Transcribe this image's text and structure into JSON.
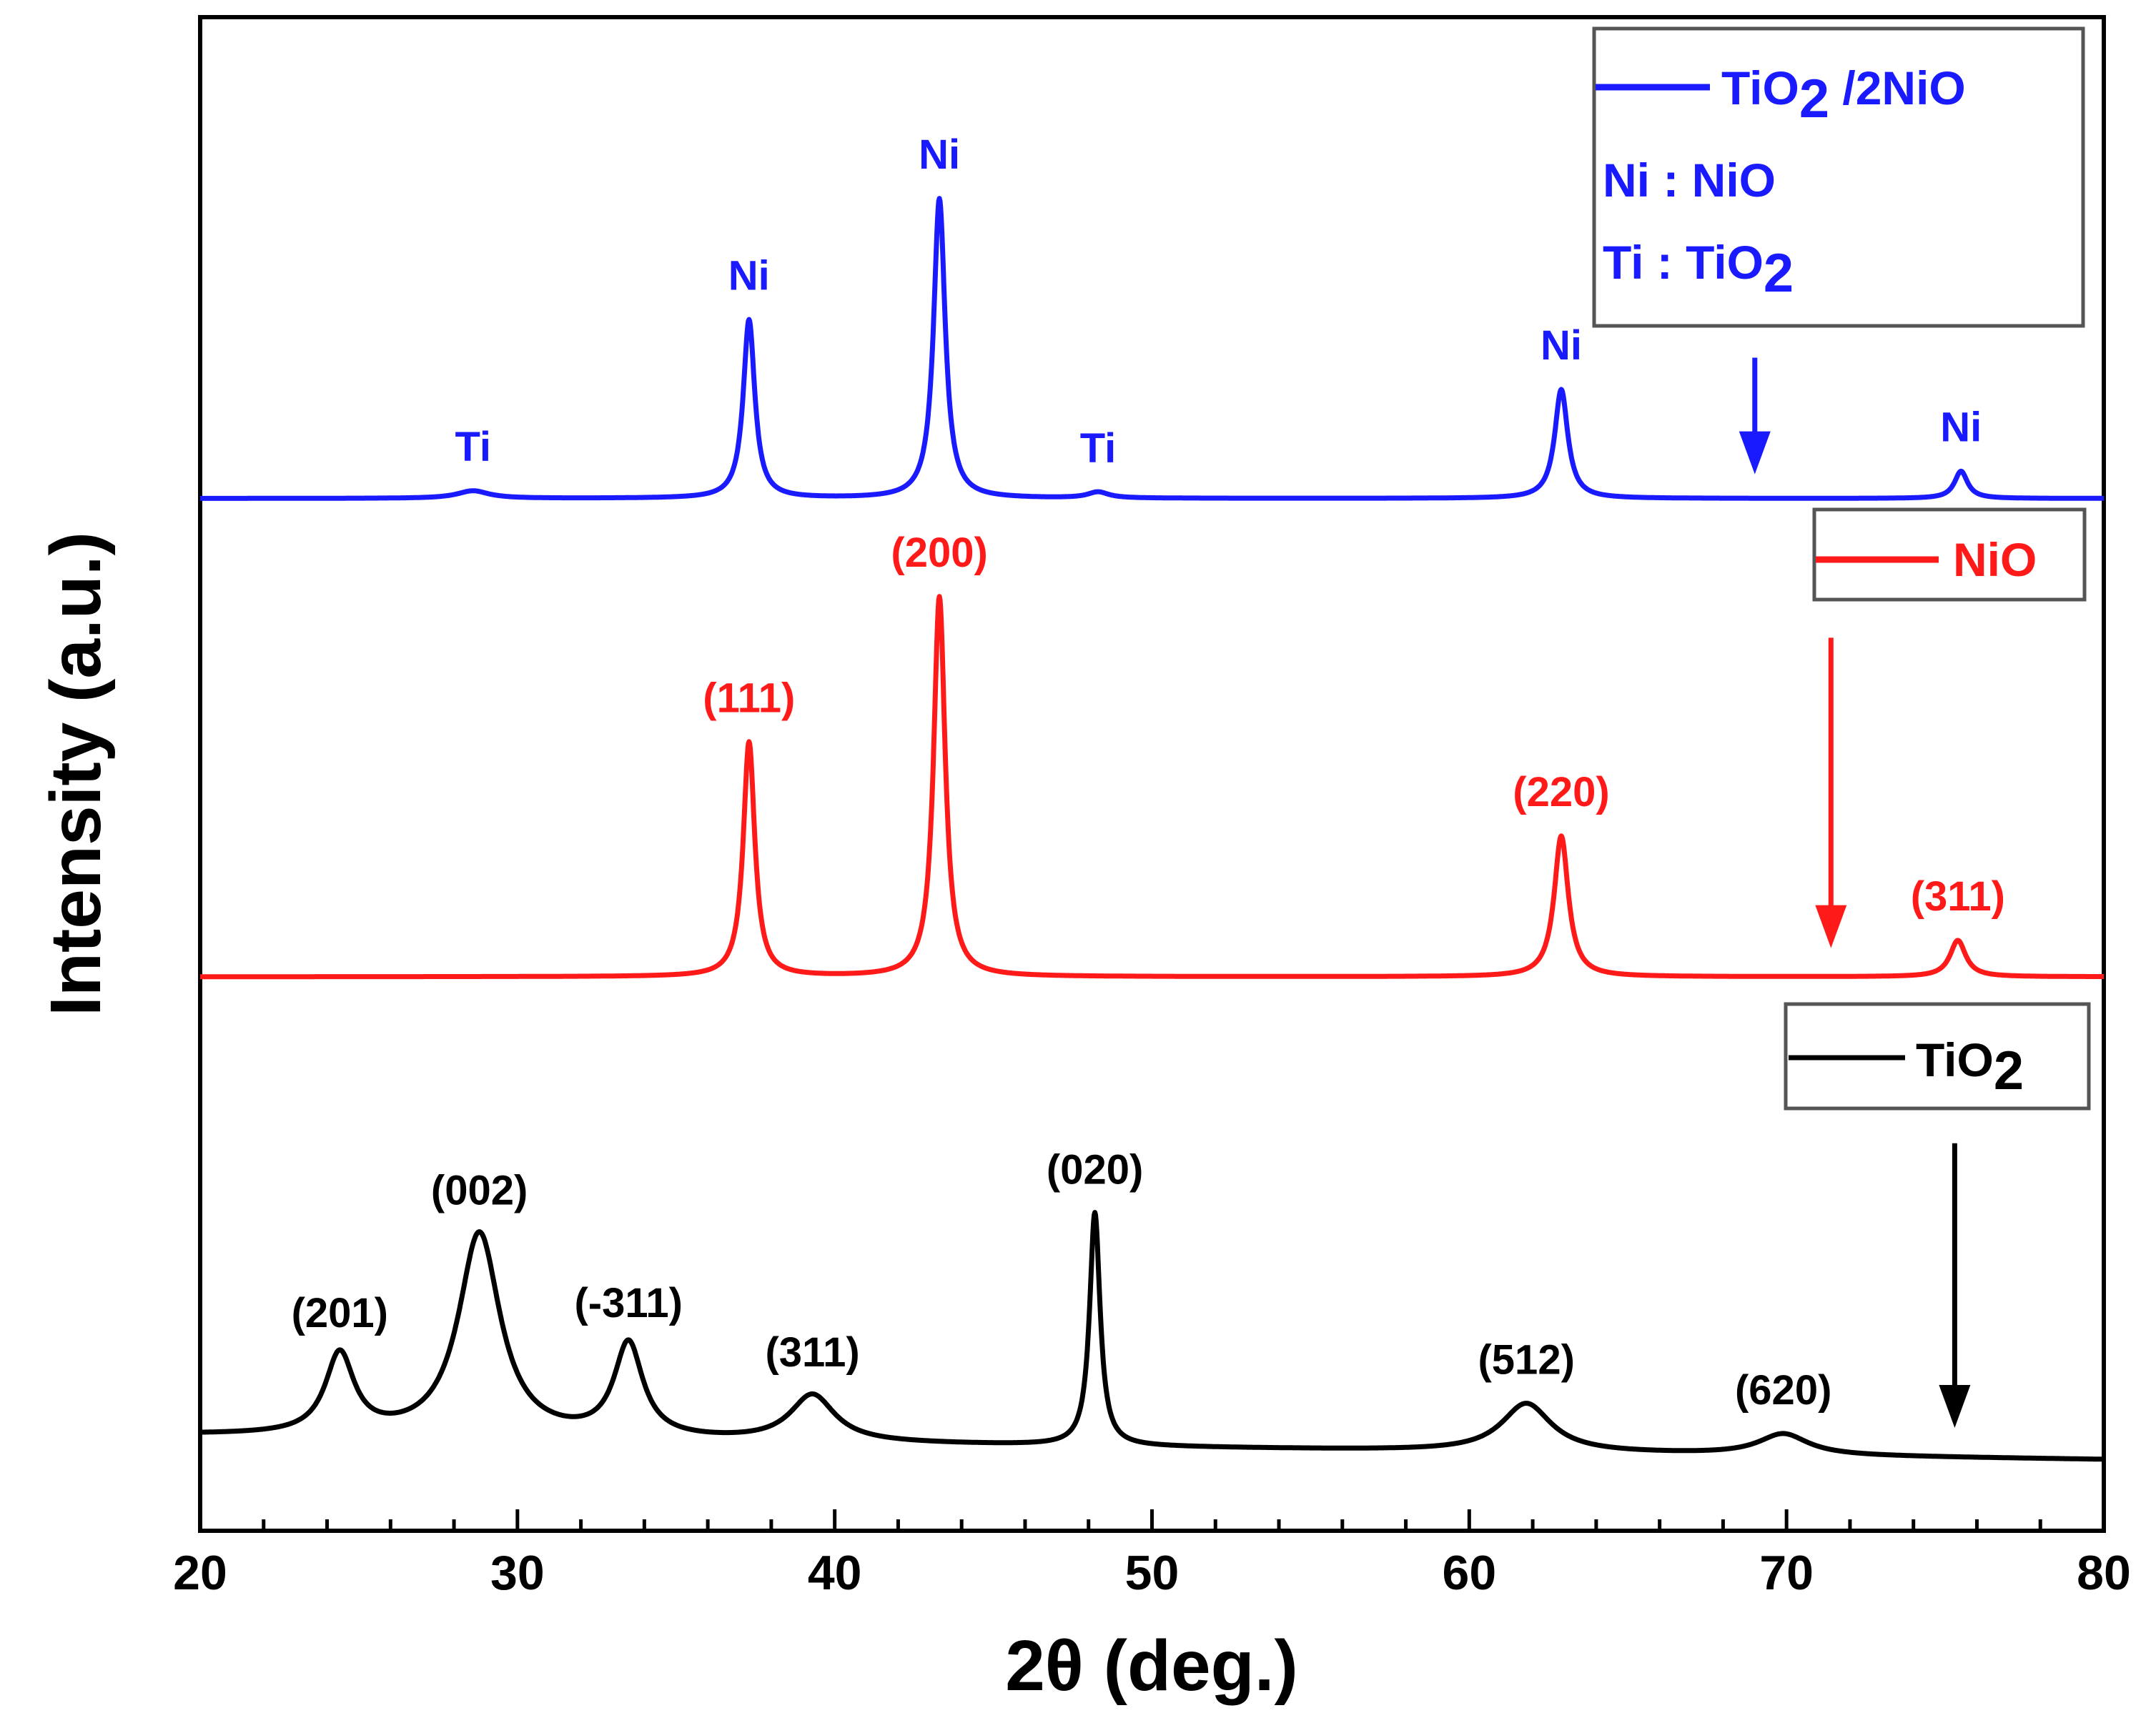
{
  "chart_data": {
    "type": "line",
    "xlabel": "2θ (deg.)",
    "ylabel": "Intensity (a.u.)",
    "xlim": [
      20,
      80
    ],
    "ylim": [
      0,
      1
    ],
    "xticks": [
      20,
      30,
      40,
      50,
      60,
      70,
      80
    ],
    "grid": false,
    "y_tick_labels": false,
    "colors": {
      "tio2_nio": "#1a1aff",
      "nio": "#ff1a1a",
      "tio2": "#000000"
    },
    "series": [
      {
        "id": "tio2_nio",
        "name": "TiO2 /2NiO",
        "color": "#1a1aff",
        "baseline": 0.682,
        "baseline_end": 0.682,
        "peaks": [
          {
            "x": 28.6,
            "height": 0.005,
            "width": 0.6,
            "label": "Ti"
          },
          {
            "x": 37.3,
            "height": 0.118,
            "width": 0.22,
            "label": "Ni"
          },
          {
            "x": 43.3,
            "height": 0.198,
            "width": 0.22,
            "label": "Ni"
          },
          {
            "x": 48.3,
            "height": 0.004,
            "width": 0.4,
            "label": "Ti"
          },
          {
            "x": 62.9,
            "height": 0.072,
            "width": 0.25,
            "label": "Ni"
          },
          {
            "x": 75.5,
            "height": 0.018,
            "width": 0.25,
            "label": "Ni"
          }
        ]
      },
      {
        "id": "nio",
        "name": "NiO",
        "color": "#ff1a1a",
        "baseline": 0.366,
        "baseline_end": 0.366,
        "peaks": [
          {
            "x": 37.3,
            "height": 0.155,
            "width": 0.22,
            "label": "(111)"
          },
          {
            "x": 43.3,
            "height": 0.251,
            "width": 0.22,
            "label": "(200)"
          },
          {
            "x": 62.9,
            "height": 0.093,
            "width": 0.27,
            "label": "(220)"
          },
          {
            "x": 75.4,
            "height": 0.024,
            "width": 0.3,
            "label": "(311)"
          }
        ]
      },
      {
        "id": "tio2",
        "name": "TiO2",
        "color": "#000000",
        "baseline": 0.063,
        "baseline_end": 0.047,
        "peaks": [
          {
            "x": 24.4,
            "height": 0.053,
            "width": 0.55,
            "label": "(201)"
          },
          {
            "x": 28.8,
            "height": 0.135,
            "width": 0.8,
            "label": "(002)"
          },
          {
            "x": 33.5,
            "height": 0.062,
            "width": 0.55,
            "label": "(-311)"
          },
          {
            "x": 39.3,
            "height": 0.031,
            "width": 0.85,
            "label": "(311)"
          },
          {
            "x": 48.2,
            "height": 0.154,
            "width": 0.2,
            "label": "(020)"
          },
          {
            "x": 61.8,
            "height": 0.032,
            "width": 0.95,
            "label": "(512)"
          },
          {
            "x": 69.9,
            "height": 0.014,
            "width": 0.95,
            "label": "(620)"
          }
        ]
      }
    ],
    "legends": {
      "tio2_nio": {
        "name": "TiO2 /2NiO",
        "notes": [
          "Ni : NiO",
          "Ti : TiO2"
        ]
      },
      "nio": {
        "name": "NiO"
      },
      "tio2": {
        "name": "TiO2"
      }
    },
    "annotations": [
      {
        "type": "arrow",
        "color": "#1a1aff",
        "x": 69.0,
        "from_y": 0.775,
        "to_y": 0.698
      },
      {
        "type": "arrow",
        "color": "#ff1a1a",
        "x": 71.4,
        "from_y": 0.59,
        "to_y": 0.385
      },
      {
        "type": "arrow",
        "color": "#000000",
        "x": 75.3,
        "from_y": 0.256,
        "to_y": 0.068
      }
    ]
  }
}
